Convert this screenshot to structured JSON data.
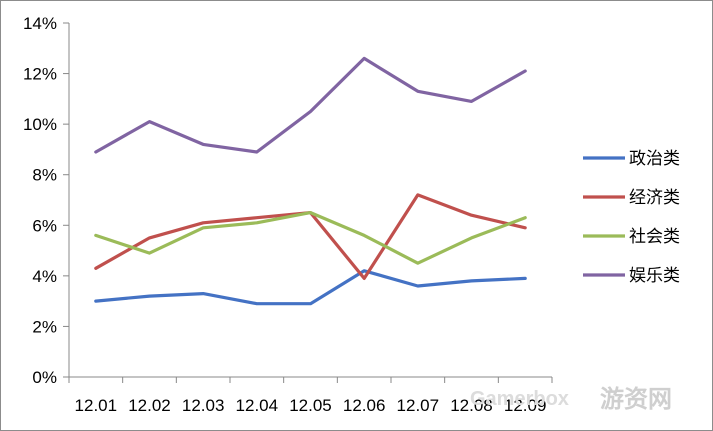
{
  "chart_data": {
    "type": "line",
    "categories": [
      "12.01",
      "12.02",
      "12.03",
      "12.04",
      "12.05",
      "12.06",
      "12.07",
      "12.08",
      "12.09"
    ],
    "ylim": [
      0,
      14
    ],
    "yticks": [
      0,
      2,
      4,
      6,
      8,
      10,
      12,
      14
    ],
    "ytick_labels": [
      "0%",
      "2%",
      "4%",
      "6%",
      "8%",
      "10%",
      "12%",
      "14%"
    ],
    "grid": false,
    "legend_position": "right",
    "series": [
      {
        "name": "政治类",
        "color": "#4472c4",
        "values": [
          3.0,
          3.2,
          3.3,
          2.9,
          2.9,
          4.2,
          3.6,
          3.8,
          3.9
        ]
      },
      {
        "name": "经济类",
        "color": "#c0504d",
        "values": [
          4.3,
          5.5,
          6.1,
          6.3,
          6.5,
          3.9,
          7.2,
          6.4,
          5.9
        ]
      },
      {
        "name": "社会类",
        "color": "#9bbb59",
        "values": [
          5.6,
          4.9,
          5.9,
          6.1,
          6.5,
          5.6,
          4.5,
          5.5,
          6.3
        ]
      },
      {
        "name": "娱乐类",
        "color": "#8064a2",
        "values": [
          8.9,
          10.1,
          9.2,
          8.9,
          10.5,
          12.6,
          11.3,
          10.9,
          12.1
        ]
      }
    ]
  },
  "watermark": {
    "text": "游资网",
    "latin": "Gamerbox"
  }
}
